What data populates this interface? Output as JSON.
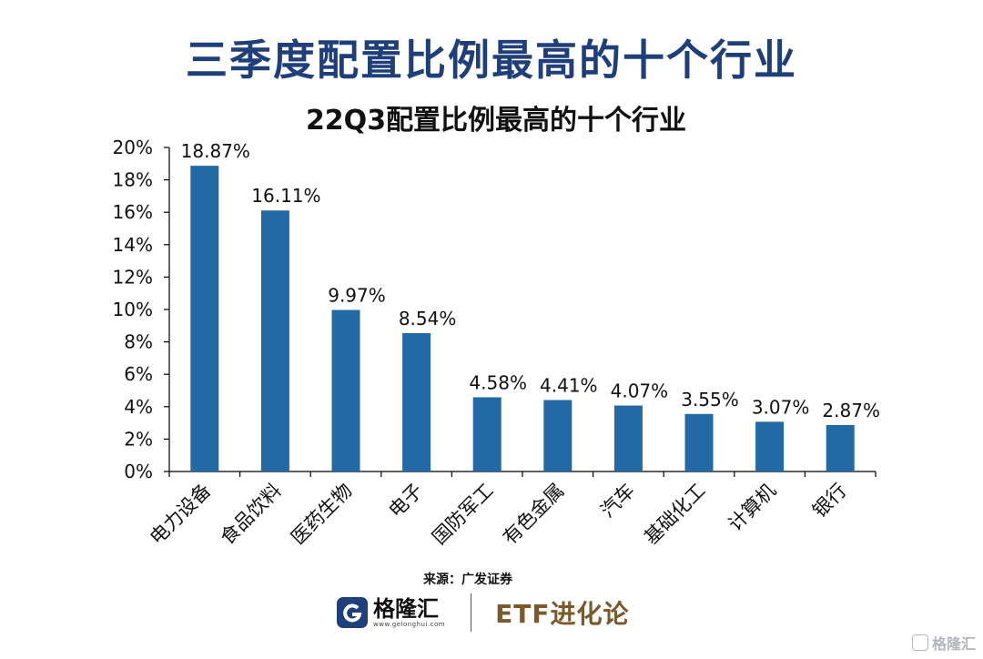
{
  "page": {
    "main_title": "三季度配置比例最高的十个行业",
    "source": "来源：广发证券",
    "logo_name": "格隆汇",
    "logo_url": "www.gelonghui.com",
    "brand": "ETF进化论",
    "watermark": "格隆汇"
  },
  "colors": {
    "bar": "#2369a6",
    "title": "#1f3f7a",
    "brand": "#7a5a2a"
  },
  "chart_data": {
    "type": "bar",
    "title": "22Q3配置比例最高的十个行业",
    "categories": [
      "电力设备",
      "食品饮料",
      "医药生物",
      "电子",
      "国防军工",
      "有色金属",
      "汽车",
      "基础化工",
      "计算机",
      "银行"
    ],
    "values": [
      18.87,
      16.11,
      9.97,
      8.54,
      4.58,
      4.41,
      4.07,
      3.55,
      3.07,
      2.87
    ],
    "value_labels": [
      "18.87%",
      "16.11%",
      "9.97%",
      "8.54%",
      "4.58%",
      "4.41%",
      "4.07%",
      "3.55%",
      "3.07%",
      "2.87%"
    ],
    "y_ticks": [
      0,
      2,
      4,
      6,
      8,
      10,
      12,
      14,
      16,
      18,
      20
    ],
    "y_tick_labels": [
      "0%",
      "2%",
      "4%",
      "6%",
      "8%",
      "10%",
      "12%",
      "14%",
      "16%",
      "18%",
      "20%"
    ],
    "ylim": [
      0,
      20
    ],
    "xlabel": "",
    "ylabel": "",
    "grid": false,
    "legend": "none"
  }
}
